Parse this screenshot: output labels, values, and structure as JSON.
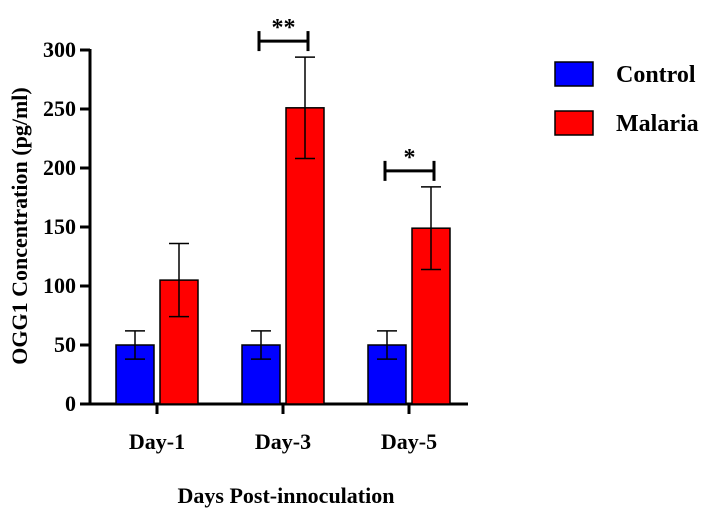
{
  "chart_data": {
    "type": "bar",
    "title": "",
    "xlabel": "Days Post-innoculation",
    "ylabel": "OGG1 Concentration (pg/ml)",
    "ylim": [
      0,
      300
    ],
    "yticks": [
      0,
      50,
      100,
      150,
      200,
      250,
      300
    ],
    "categories": [
      "Day-1",
      "Day-3",
      "Day-5"
    ],
    "series": [
      {
        "name": "Control",
        "color": "#0000ff",
        "values": [
          50,
          50,
          50
        ],
        "error": [
          12,
          12,
          12
        ]
      },
      {
        "name": "Malaria",
        "color": "#ff0000",
        "values": [
          105,
          251,
          149
        ],
        "error": [
          31,
          43,
          35
        ]
      }
    ],
    "significance": [
      {
        "category": "Day-3",
        "label": "**"
      },
      {
        "category": "Day-5",
        "label": "*"
      }
    ],
    "legend_position": "right"
  }
}
